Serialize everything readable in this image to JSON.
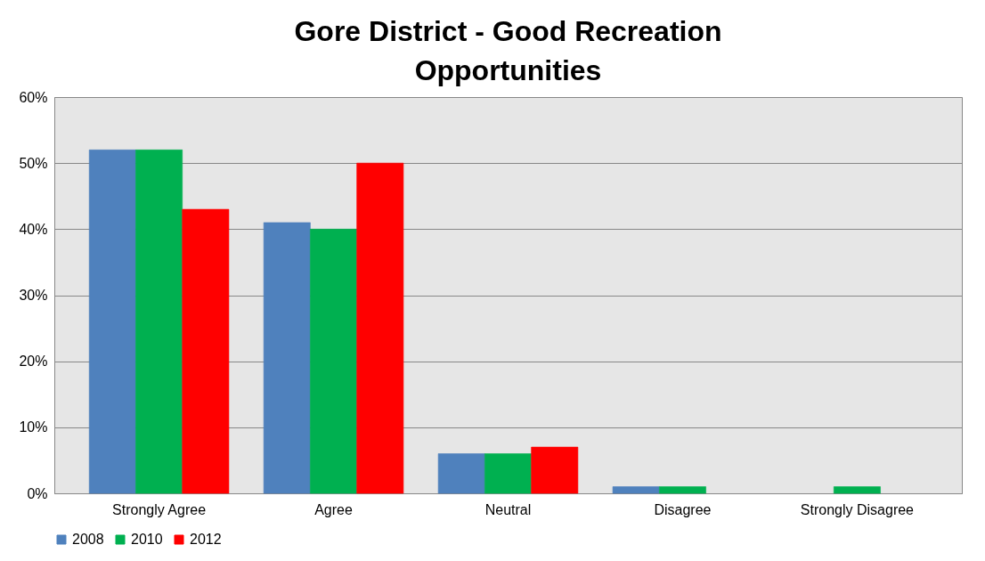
{
  "chart_data": {
    "type": "bar",
    "title": "Gore District - Good Recreation Opportunities",
    "categories": [
      "Strongly Agree",
      "Agree",
      "Neutral",
      "Disagree",
      "Strongly Disagree"
    ],
    "series": [
      {
        "name": "2008",
        "color": "#4f81bd",
        "values": [
          52,
          41,
          6,
          1,
          null
        ]
      },
      {
        "name": "2010",
        "color": "#00b050",
        "values": [
          52,
          40,
          6,
          1,
          1
        ]
      },
      {
        "name": "2012",
        "color": "#ff0000",
        "values": [
          43,
          50,
          7,
          null,
          null
        ]
      }
    ],
    "ylim": [
      0,
      60
    ],
    "yticks": [
      {
        "value": 0,
        "label": "0%"
      },
      {
        "value": 10,
        "label": "10%"
      },
      {
        "value": 20,
        "label": "20%"
      },
      {
        "value": 30,
        "label": "30%"
      },
      {
        "value": 40,
        "label": "40%"
      },
      {
        "value": 50,
        "label": "50%"
      },
      {
        "value": 60,
        "label": "60%"
      }
    ],
    "grid": "y",
    "legend": "bottom"
  }
}
